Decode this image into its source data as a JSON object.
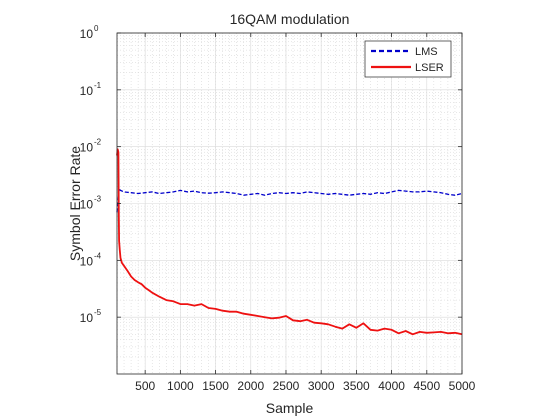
{
  "chart_data": {
    "type": "line",
    "title": "16QAM modulation",
    "xlabel": "Sample",
    "ylabel": "Symbol Error Rate",
    "xlim": [
      100,
      5000
    ],
    "ylim": [
      1e-06,
      1
    ],
    "yscale": "log",
    "grid": true,
    "minor_grid": true,
    "legend_position": "top-right",
    "x_ticks": [
      500,
      1000,
      1500,
      2000,
      2500,
      3000,
      3500,
      4000,
      4500,
      5000
    ],
    "x_tick_labels": [
      "500",
      "1000",
      "1500",
      "2000",
      "2500",
      "3000",
      "3500",
      "4000",
      "4500",
      "5000"
    ],
    "y_ticks": [
      1e-05,
      0.0001,
      0.001,
      0.01,
      0.1,
      1
    ],
    "y_tick_labels": [
      {
        "base": "10",
        "exp": "-5"
      },
      {
        "base": "10",
        "exp": "-4"
      },
      {
        "base": "10",
        "exp": "-3"
      },
      {
        "base": "10",
        "exp": "-2"
      },
      {
        "base": "10",
        "exp": "-1"
      },
      {
        "base": "10",
        "exp": "0"
      }
    ],
    "series": [
      {
        "name": "LMS",
        "color": "#0000cc",
        "style": "dashed",
        "x": [
          100,
          115,
          130,
          150,
          200,
          300,
          400,
          500,
          600,
          700,
          800,
          900,
          1000,
          1100,
          1200,
          1300,
          1400,
          1500,
          1600,
          1700,
          1800,
          1900,
          2000,
          2100,
          2200,
          2300,
          2400,
          2500,
          2600,
          2700,
          2800,
          2900,
          3000,
          3100,
          3200,
          3300,
          3400,
          3500,
          3600,
          3700,
          3800,
          3900,
          4000,
          4100,
          4200,
          4300,
          4400,
          4500,
          4600,
          4700,
          4800,
          4900,
          5000
        ],
        "y": [
          0.0007,
          0.0011,
          0.0018,
          0.0017,
          0.0016,
          0.00155,
          0.0015,
          0.00155,
          0.0016,
          0.0015,
          0.00155,
          0.0016,
          0.0017,
          0.0016,
          0.00165,
          0.00155,
          0.00152,
          0.00155,
          0.0016,
          0.00155,
          0.0015,
          0.0014,
          0.00145,
          0.0015,
          0.0014,
          0.0015,
          0.00155,
          0.0015,
          0.00155,
          0.0015,
          0.0016,
          0.00155,
          0.0015,
          0.00145,
          0.0015,
          0.00145,
          0.0014,
          0.00145,
          0.0015,
          0.00145,
          0.00155,
          0.0015,
          0.0016,
          0.0017,
          0.00165,
          0.0016,
          0.0016,
          0.00165,
          0.0016,
          0.00155,
          0.00145,
          0.0014,
          0.0015
        ]
      },
      {
        "name": "LSER",
        "color": "#ee1111",
        "style": "solid",
        "x": [
          100,
          110,
          120,
          125,
          130,
          140,
          150,
          170,
          200,
          250,
          300,
          350,
          400,
          450,
          500,
          550,
          600,
          700,
          800,
          900,
          1000,
          1100,
          1200,
          1300,
          1400,
          1500,
          1600,
          1700,
          1800,
          1900,
          2000,
          2100,
          2200,
          2300,
          2400,
          2500,
          2600,
          2700,
          2800,
          2900,
          3000,
          3100,
          3200,
          3300,
          3400,
          3500,
          3600,
          3700,
          3800,
          3900,
          4000,
          4100,
          4200,
          4300,
          4400,
          4500,
          4600,
          4700,
          4800,
          4900,
          5000
        ],
        "y": [
          0.007,
          0.009,
          0.008,
          0.0006,
          0.00022,
          0.00015,
          0.00011,
          9e-05,
          8e-05,
          6.5e-05,
          5.2e-05,
          4.5e-05,
          4.1e-05,
          3.8e-05,
          3.3e-05,
          3e-05,
          2.7e-05,
          2.3e-05,
          2e-05,
          1.9e-05,
          1.7e-05,
          1.7e-05,
          1.6e-05,
          1.7e-05,
          1.45e-05,
          1.4e-05,
          1.3e-05,
          1.25e-05,
          1.25e-05,
          1.15e-05,
          1.1e-05,
          1.05e-05,
          1e-05,
          9.5e-06,
          9.8e-06,
          1.05e-05,
          8.8e-06,
          8.5e-06,
          9e-06,
          8e-06,
          7.8e-06,
          7.5e-06,
          6.8e-06,
          6.3e-06,
          7.5e-06,
          6.5e-06,
          7.8e-06,
          6e-06,
          5.8e-06,
          6.3e-06,
          6e-06,
          5.2e-06,
          5.7e-06,
          5e-06,
          5.5e-06,
          5.3e-06,
          5.4e-06,
          5.5e-06,
          5.2e-06,
          5.3e-06,
          5e-06
        ]
      }
    ]
  }
}
